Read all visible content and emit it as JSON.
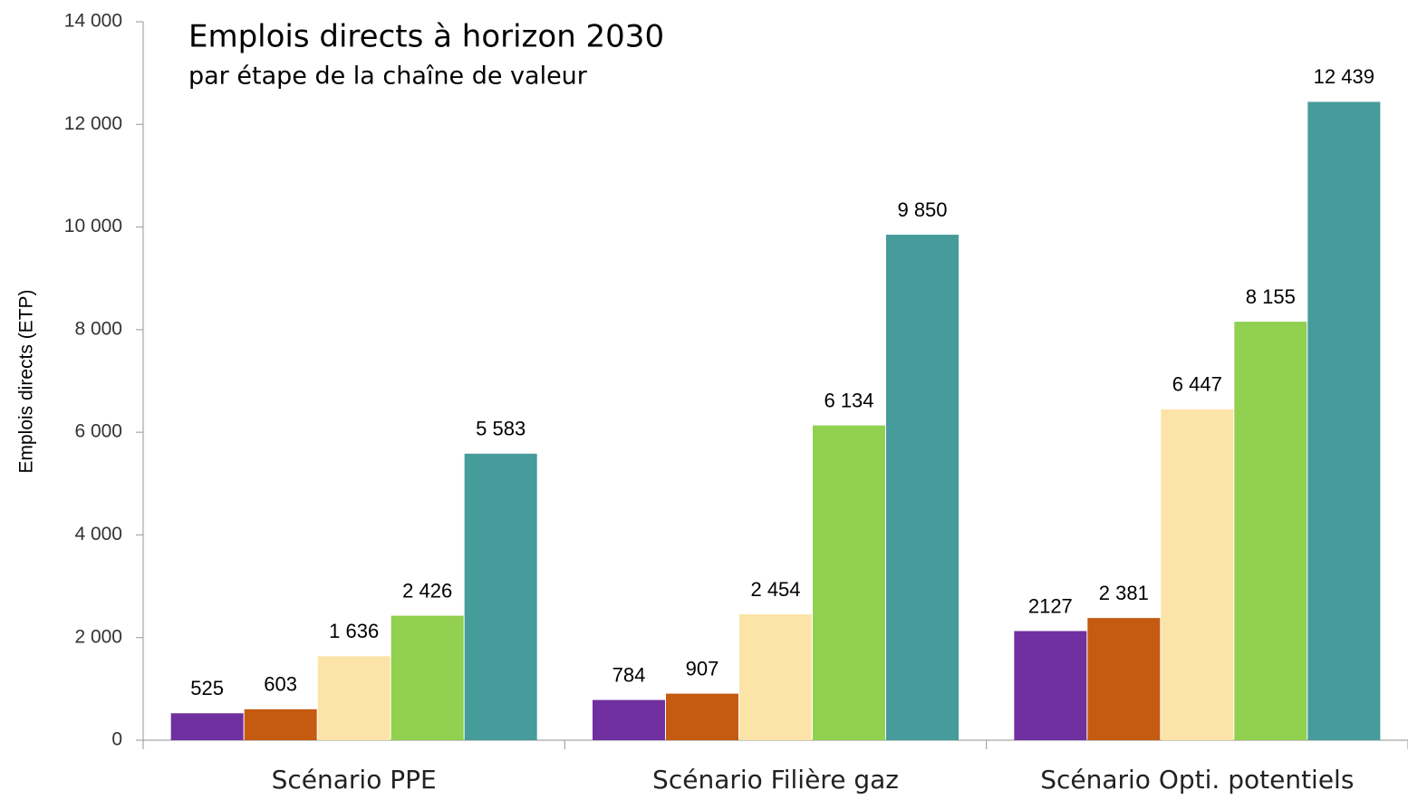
{
  "chart_data": {
    "type": "bar",
    "title": "Emplois directs à horizon 2030",
    "subtitle": "par étape de la chaîne de valeur",
    "y_label": "Emplois directs (ETP)",
    "categories": [
      "Scénario PPE",
      "Scénario Filière gaz",
      "Scénario Opti. potentiels"
    ],
    "series": [
      {
        "color": "#7030a0",
        "values": [
          525,
          784,
          2127
        ],
        "value_labels": [
          "525",
          "784",
          "2127"
        ]
      },
      {
        "color": "#c55a11",
        "values": [
          603,
          907,
          2381
        ],
        "value_labels": [
          "603",
          "907",
          "2 381"
        ]
      },
      {
        "color": "#fce4a8",
        "values": [
          1636,
          2454,
          6447
        ],
        "value_labels": [
          "1 636",
          "2 454",
          "6 447"
        ]
      },
      {
        "color": "#92d050",
        "values": [
          2426,
          6134,
          8155
        ],
        "value_labels": [
          "2 426",
          "6 134",
          "8 155"
        ]
      },
      {
        "color": "#469b9b",
        "values": [
          5583,
          9850,
          12439
        ],
        "value_labels": [
          "5 583",
          "9 850",
          "12 439"
        ]
      }
    ],
    "ylim": [
      0,
      14000
    ],
    "yticks": [
      0,
      {
        "value": 2000,
        "label": "2 000"
      },
      {
        "value": 4000,
        "label": "4 000"
      },
      {
        "value": 6000,
        "label": "6 000"
      },
      {
        "value": 8000,
        "label": "8 000"
      },
      {
        "value": 10000,
        "label": "10 000"
      },
      {
        "value": 12000,
        "label": "12 000"
      },
      {
        "value": 14000,
        "label": "14 000"
      }
    ],
    "grid": false
  }
}
